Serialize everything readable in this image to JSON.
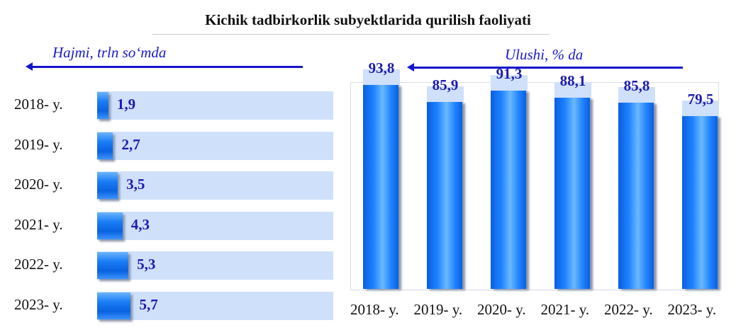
{
  "title": "Kichik tadbirkorlik subyektlarida qurilish faoliyati",
  "colors": {
    "accent": "#1515cc",
    "bar": "#1a7df5",
    "track": "#cfe0fb",
    "value_text": "#1c1cb0"
  },
  "chart_data": [
    {
      "type": "bar",
      "orientation": "horizontal",
      "title": "Hajmi, trln so‘mda",
      "categories": [
        "2018- y.",
        "2019- y.",
        "2020- y.",
        "2021- y.",
        "2022- y.",
        "2023- y."
      ],
      "values": [
        1.9,
        2.7,
        3.5,
        4.3,
        5.3,
        5.7
      ],
      "value_labels": [
        "1,9",
        "2,7",
        "3,5",
        "4,3",
        "5,3",
        "5,7"
      ],
      "xlim": [
        0,
        40
      ],
      "grid": false,
      "legend": "none"
    },
    {
      "type": "bar",
      "orientation": "vertical",
      "title": "Ulushi, % da",
      "categories": [
        "2018- y.",
        "2019- y.",
        "2020- y.",
        "2021- y.",
        "2022- y.",
        "2023- y."
      ],
      "values": [
        93.8,
        85.9,
        91.3,
        88.1,
        85.8,
        79.5
      ],
      "value_labels": [
        "93,8",
        "85,9",
        "91,3",
        "88,1",
        "85,8",
        "79,5"
      ],
      "ylim": [
        0,
        100
      ],
      "grid": false,
      "legend": "none"
    }
  ]
}
